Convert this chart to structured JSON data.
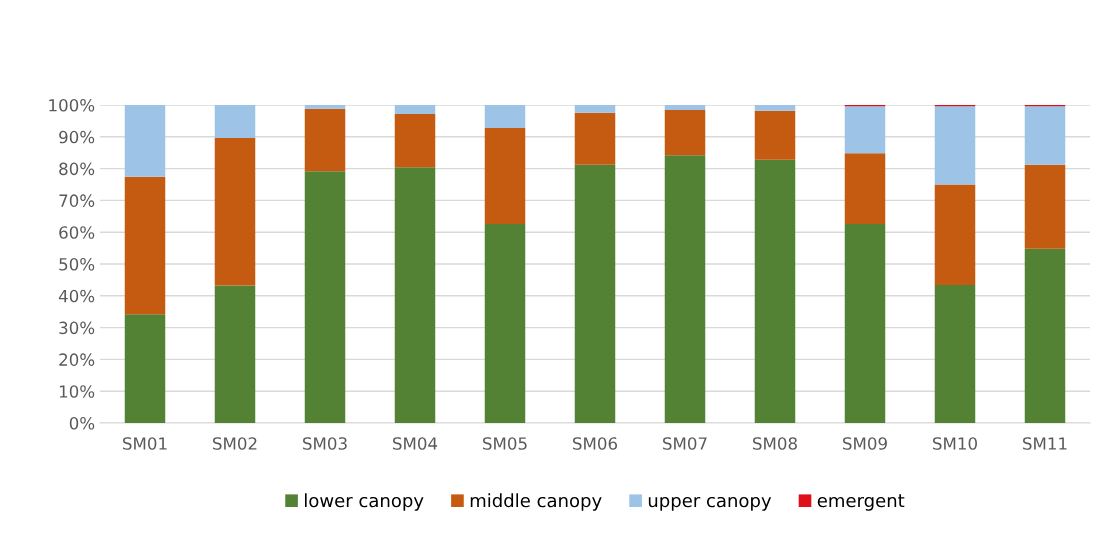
{
  "chart_data": {
    "type": "bar",
    "stacked": true,
    "categories": [
      "SM01",
      "SM02",
      "SM03",
      "SM04",
      "SM05",
      "SM06",
      "SM07",
      "SM08",
      "SM09",
      "SM10",
      "SM11"
    ],
    "series": [
      {
        "name": "lower canopy",
        "color": "#548235",
        "values": [
          34.2,
          43.2,
          79.2,
          80.4,
          62.6,
          81.2,
          84.2,
          82.8,
          62.6,
          43.4,
          54.8
        ]
      },
      {
        "name": "middle canopy",
        "color": "#c55a11",
        "values": [
          43.2,
          46.4,
          19.6,
          16.8,
          30.2,
          16.4,
          14.2,
          15.4,
          22.2,
          31.6,
          26.4
        ]
      },
      {
        "name": "upper canopy",
        "color": "#9dc3e6",
        "values": [
          22.6,
          10.4,
          1.2,
          2.8,
          7.2,
          2.4,
          1.6,
          1.8,
          14.8,
          24.6,
          18.4
        ]
      },
      {
        "name": "emergent",
        "color": "#e0101a",
        "values": [
          0,
          0,
          0,
          0,
          0,
          0,
          0,
          0,
          0.4,
          0.4,
          0.4
        ]
      }
    ],
    "ylim": [
      0,
      100
    ],
    "yticks": [
      {
        "value": 0,
        "label": "0%"
      },
      {
        "value": 10,
        "label": "10%"
      },
      {
        "value": 20,
        "label": "20%"
      },
      {
        "value": 30,
        "label": "30%"
      },
      {
        "value": 40,
        "label": "40%"
      },
      {
        "value": 50,
        "label": "50%"
      },
      {
        "value": 60,
        "label": "60%"
      },
      {
        "value": 70,
        "label": "70%"
      },
      {
        "value": 80,
        "label": "80%"
      },
      {
        "value": 90,
        "label": "90%"
      },
      {
        "value": 100,
        "label": "100%"
      }
    ],
    "grid": "y",
    "legend": "bottom"
  }
}
